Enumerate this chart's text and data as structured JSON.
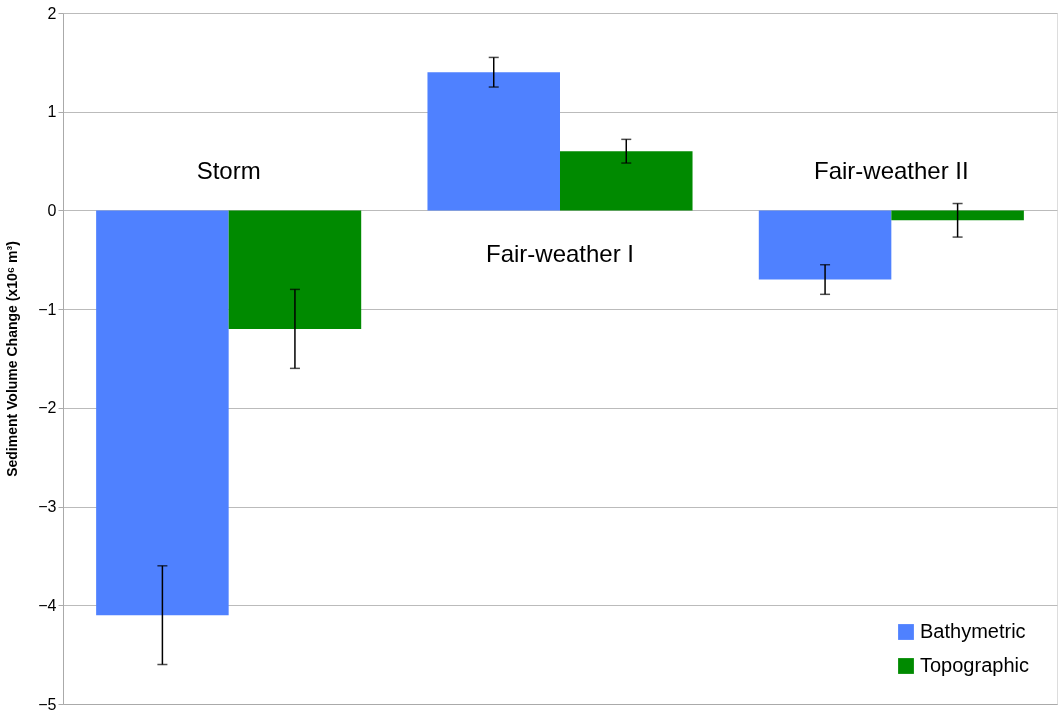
{
  "chart_data": {
    "type": "bar",
    "ylabel": "Sediment Volume Change (x10⁶ m³)",
    "categories": [
      "Storm",
      "Fair-weather I",
      "Fair-weather II"
    ],
    "series": [
      {
        "name": "Bathymetric",
        "color": "#4f81ff",
        "values": [
          -4.1,
          1.4,
          -0.7
        ],
        "errors": [
          0.5,
          0.15,
          0.15
        ]
      },
      {
        "name": "Topographic",
        "color": "#008a00",
        "values": [
          -1.2,
          0.6,
          -0.1
        ],
        "errors": [
          0.4,
          0.12,
          0.17
        ]
      }
    ],
    "ylim": [
      -5,
      2
    ],
    "yticks": [
      -5,
      -4,
      -3,
      -2,
      -1,
      0,
      1,
      2
    ],
    "grid": "y",
    "legend": "bottom right",
    "tick_labels": "y"
  }
}
